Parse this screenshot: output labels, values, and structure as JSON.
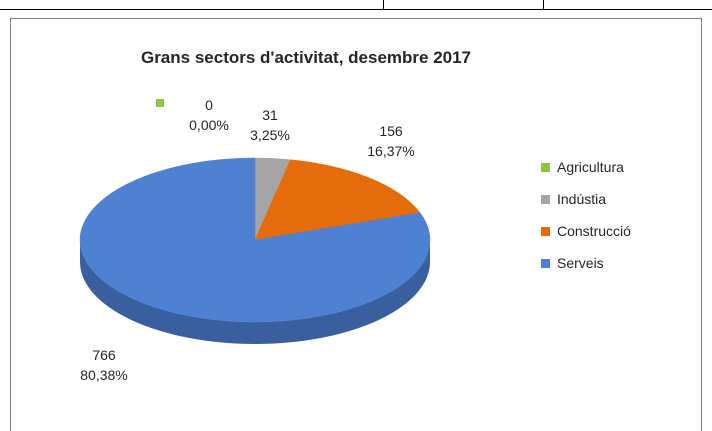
{
  "chart_data": {
    "type": "pie",
    "title": "Grans sectors d'activitat, desembre 2017",
    "categories": [
      "Agricultura",
      "Indústia",
      "Construcció",
      "Serveis"
    ],
    "values": [
      0,
      31,
      156,
      766
    ],
    "percent_labels": [
      "0,00%",
      "3,25%",
      "16,37%",
      "80,38%"
    ],
    "colors": [
      "#8DC63F",
      "#A5A5A5",
      "#E46C0A",
      "#4F81D3"
    ],
    "side_colors": [
      "#6A9A2E",
      "#7F7F7F",
      "#A94F07",
      "#3A5F9E"
    ],
    "style": "3d",
    "legend_position": "right"
  }
}
